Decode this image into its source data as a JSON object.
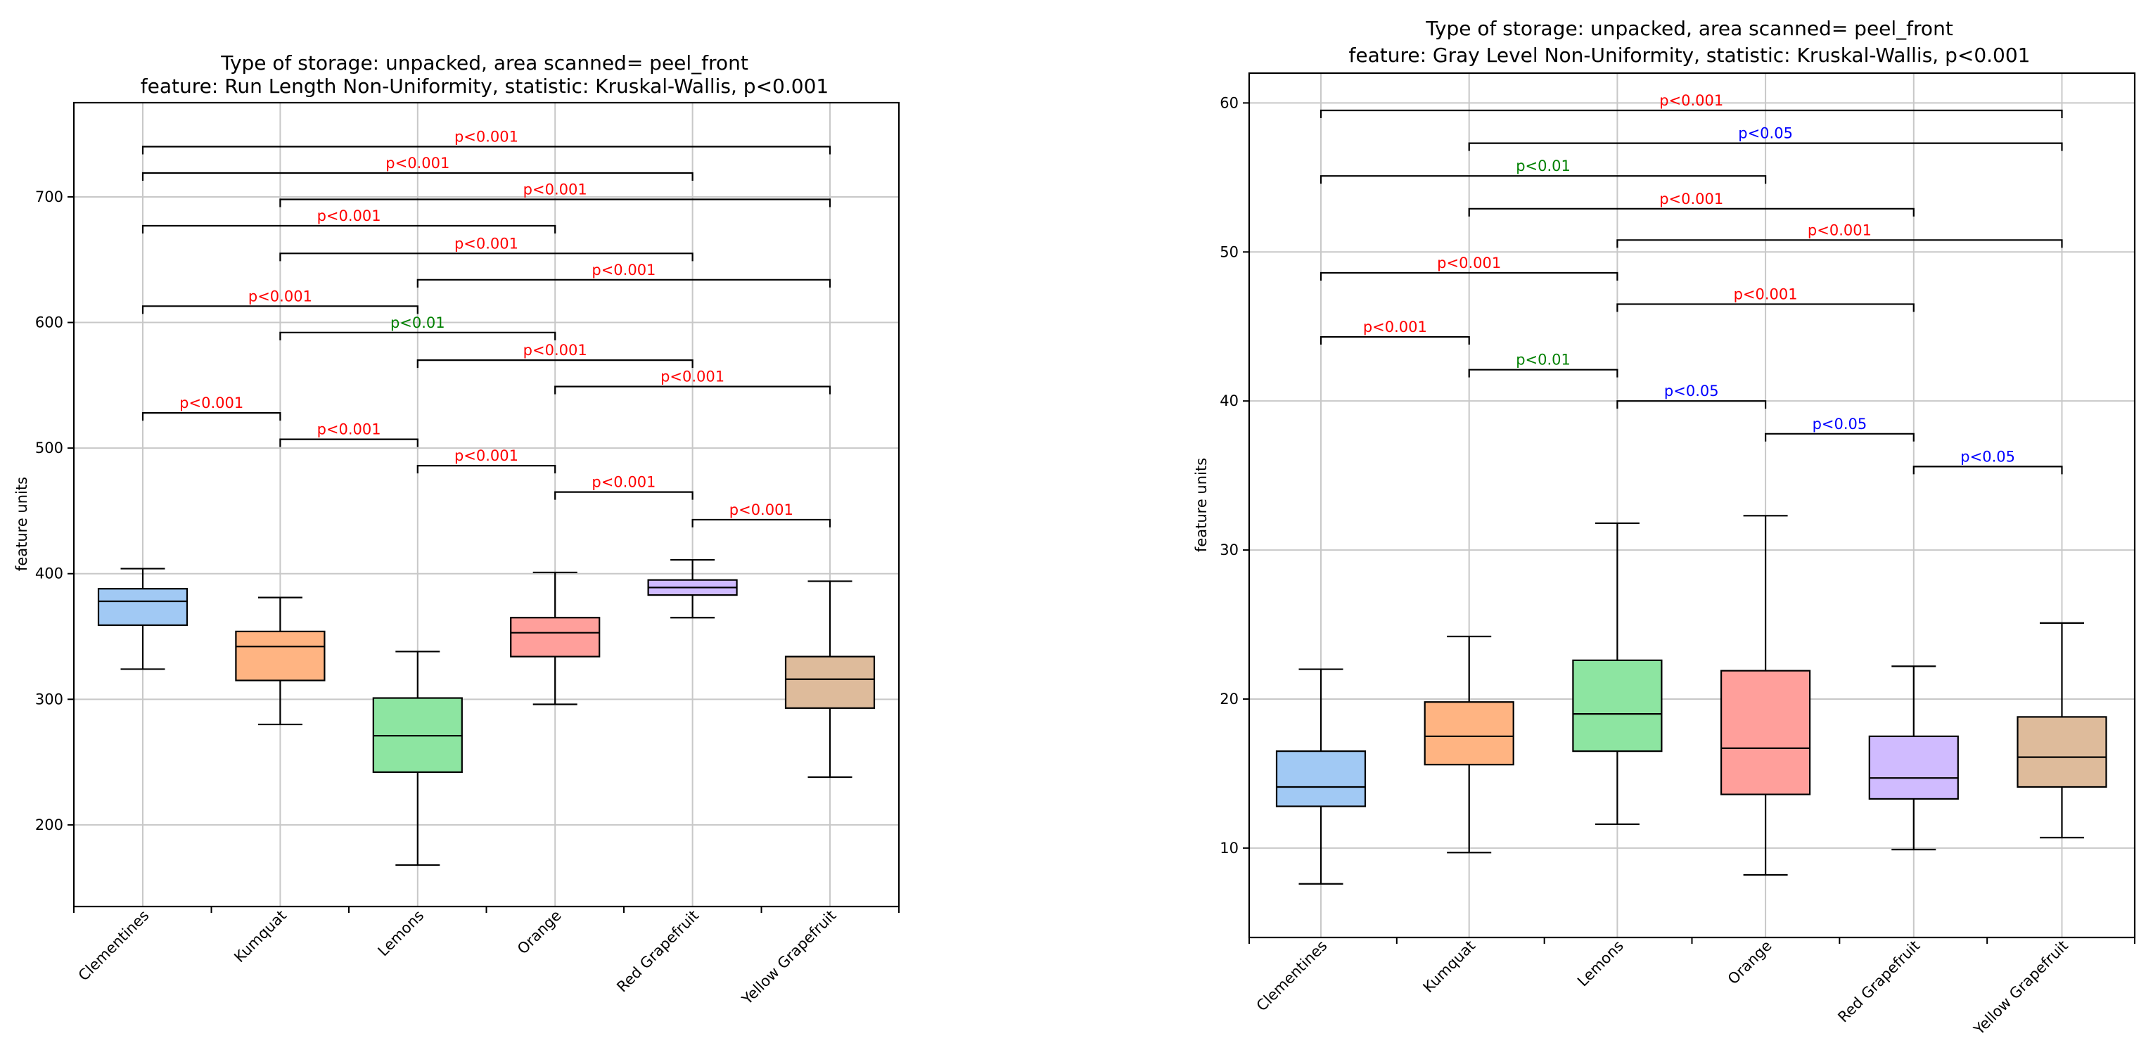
{
  "chart_data": [
    {
      "type": "box",
      "title_line1": "Type of storage: unpacked, area scanned= peel_front",
      "title_line2": "feature: Run Length Non-Uniformity, statistic: Kruskal-Wallis, p<0.001",
      "xlabel": "",
      "ylabel": "feature units",
      "ylim": [
        135,
        775
      ],
      "yticks": [
        200,
        300,
        400,
        500,
        600,
        700
      ],
      "grid": true,
      "categories": [
        "Clementines",
        "Kumquat",
        "Lemons",
        "Orange",
        "Red Grapefruit",
        "Yellow Grapefruit"
      ],
      "colors": [
        "#a1c9f4",
        "#ffb482",
        "#8de5a1",
        "#ff9f9b",
        "#d0bbff",
        "#debb9b"
      ],
      "boxes": [
        {
          "whislo": 324,
          "q1": 359,
          "med": 378,
          "q3": 388,
          "whishi": 404
        },
        {
          "whislo": 280,
          "q1": 315,
          "med": 342,
          "q3": 354,
          "whishi": 381
        },
        {
          "whislo": 168,
          "q1": 242,
          "med": 271,
          "q3": 301,
          "whishi": 338
        },
        {
          "whislo": 296,
          "q1": 334,
          "med": 353,
          "q3": 365,
          "whishi": 401
        },
        {
          "whislo": 365,
          "q1": 383,
          "med": 389,
          "q3": 395,
          "whishi": 411
        },
        {
          "whislo": 238,
          "q1": 293,
          "med": 316,
          "q3": 334,
          "whishi": 394
        }
      ],
      "significance": [
        {
          "a": 0,
          "b": 5,
          "y": 740,
          "label": "p<0.001",
          "color": "#ff0000"
        },
        {
          "a": 0,
          "b": 4,
          "y": 719,
          "label": "p<0.001",
          "color": "#ff0000"
        },
        {
          "a": 1,
          "b": 5,
          "y": 698,
          "label": "p<0.001",
          "color": "#ff0000"
        },
        {
          "a": 0,
          "b": 3,
          "y": 677,
          "label": "p<0.001",
          "color": "#ff0000"
        },
        {
          "a": 1,
          "b": 4,
          "y": 655,
          "label": "p<0.001",
          "color": "#ff0000"
        },
        {
          "a": 2,
          "b": 5,
          "y": 634,
          "label": "p<0.001",
          "color": "#ff0000"
        },
        {
          "a": 0,
          "b": 2,
          "y": 613,
          "label": "p<0.001",
          "color": "#ff0000"
        },
        {
          "a": 1,
          "b": 3,
          "y": 592,
          "label": "p<0.01",
          "color": "#008000"
        },
        {
          "a": 2,
          "b": 4,
          "y": 570,
          "label": "p<0.001",
          "color": "#ff0000"
        },
        {
          "a": 3,
          "b": 5,
          "y": 549,
          "label": "p<0.001",
          "color": "#ff0000"
        },
        {
          "a": 0,
          "b": 1,
          "y": 528,
          "label": "p<0.001",
          "color": "#ff0000"
        },
        {
          "a": 1,
          "b": 2,
          "y": 507,
          "label": "p<0.001",
          "color": "#ff0000"
        },
        {
          "a": 2,
          "b": 3,
          "y": 486,
          "label": "p<0.001",
          "color": "#ff0000"
        },
        {
          "a": 3,
          "b": 4,
          "y": 465,
          "label": "p<0.001",
          "color": "#ff0000"
        },
        {
          "a": 4,
          "b": 5,
          "y": 443,
          "label": "p<0.001",
          "color": "#ff0000"
        }
      ]
    },
    {
      "type": "box",
      "title_line1": "Type of storage: unpacked, area scanned= peel_front",
      "title_line2": "feature: Gray Level Non-Uniformity, statistic: Kruskal-Wallis, p<0.001",
      "xlabel": "",
      "ylabel": "feature units",
      "ylim": [
        4,
        62
      ],
      "yticks": [
        10,
        20,
        30,
        40,
        50,
        60
      ],
      "grid": true,
      "categories": [
        "Clementines",
        "Kumquat",
        "Lemons",
        "Orange",
        "Red Grapefruit",
        "Yellow Grapefruit"
      ],
      "colors": [
        "#a1c9f4",
        "#ffb482",
        "#8de5a1",
        "#ff9f9b",
        "#d0bbff",
        "#debb9b"
      ],
      "boxes": [
        {
          "whislo": 7.6,
          "q1": 12.8,
          "med": 14.1,
          "q3": 16.5,
          "whishi": 22.0
        },
        {
          "whislo": 9.7,
          "q1": 15.6,
          "med": 17.5,
          "q3": 19.8,
          "whishi": 24.2
        },
        {
          "whislo": 11.6,
          "q1": 16.5,
          "med": 19.0,
          "q3": 22.6,
          "whishi": 31.8
        },
        {
          "whislo": 8.2,
          "q1": 13.6,
          "med": 16.7,
          "q3": 21.9,
          "whishi": 32.3
        },
        {
          "whislo": 9.9,
          "q1": 13.3,
          "med": 14.7,
          "q3": 17.5,
          "whishi": 22.2
        },
        {
          "whislo": 10.7,
          "q1": 14.1,
          "med": 16.1,
          "q3": 18.8,
          "whishi": 25.1
        }
      ],
      "significance": [
        {
          "a": 0,
          "b": 5,
          "y": 59.5,
          "label": "p<0.001",
          "color": "#ff0000"
        },
        {
          "a": 1,
          "b": 5,
          "y": 57.3,
          "label": "p<0.05",
          "color": "#0000ff"
        },
        {
          "a": 0,
          "b": 3,
          "y": 55.1,
          "label": "p<0.01",
          "color": "#008000"
        },
        {
          "a": 1,
          "b": 4,
          "y": 52.9,
          "label": "p<0.001",
          "color": "#ff0000"
        },
        {
          "a": 2,
          "b": 5,
          "y": 50.8,
          "label": "p<0.001",
          "color": "#ff0000"
        },
        {
          "a": 0,
          "b": 2,
          "y": 48.6,
          "label": "p<0.001",
          "color": "#ff0000"
        },
        {
          "a": 2,
          "b": 4,
          "y": 46.5,
          "label": "p<0.001",
          "color": "#ff0000"
        },
        {
          "a": 0,
          "b": 1,
          "y": 44.3,
          "label": "p<0.001",
          "color": "#ff0000"
        },
        {
          "a": 1,
          "b": 2,
          "y": 42.1,
          "label": "p<0.01",
          "color": "#008000"
        },
        {
          "a": 2,
          "b": 3,
          "y": 40.0,
          "label": "p<0.05",
          "color": "#0000ff"
        },
        {
          "a": 3,
          "b": 4,
          "y": 37.8,
          "label": "p<0.05",
          "color": "#0000ff"
        },
        {
          "a": 4,
          "b": 5,
          "y": 35.6,
          "label": "p<0.05",
          "color": "#0000ff"
        }
      ]
    }
  ]
}
